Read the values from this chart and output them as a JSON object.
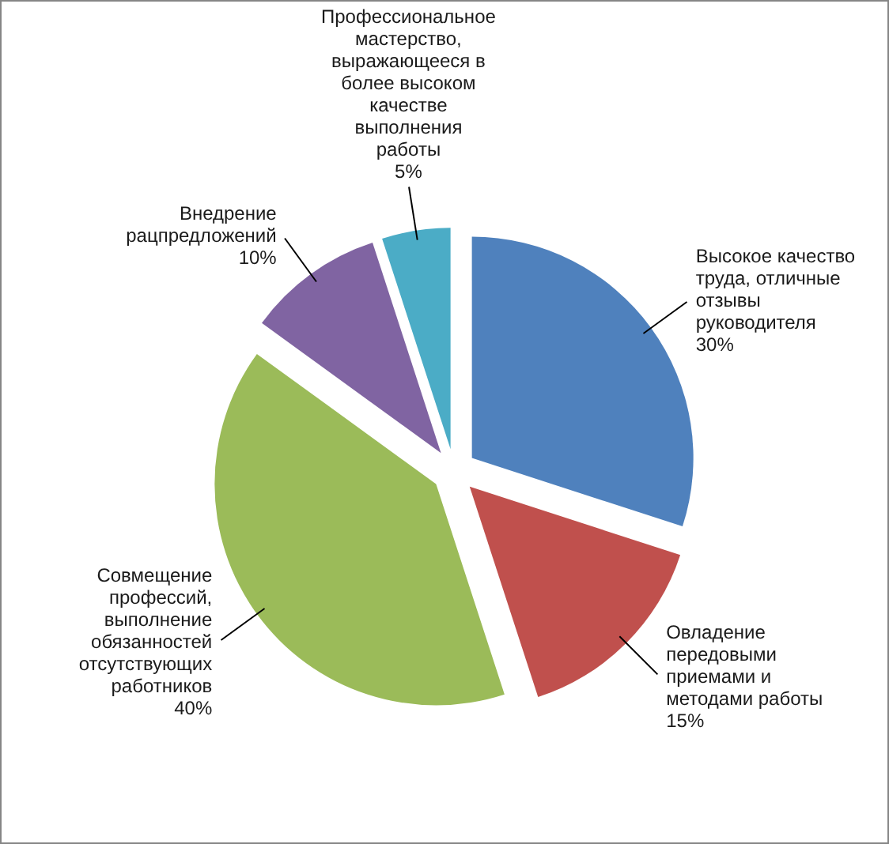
{
  "chart_data": {
    "type": "pie",
    "categories": [
      "Высокое качество труда, отличные отзывы руководителя",
      "Овладение передовыми приемами и методами работы",
      "Совмещение профессий, выполнение обязанностей отсутствующих работников",
      "Внедрение рацпредложений",
      "Профессиональное мастерство, выражающееся в более высоком качестве выполнения работы"
    ],
    "values": [
      30,
      15,
      40,
      10,
      5
    ],
    "colors": [
      "#4f81bd",
      "#c0504d",
      "#9bbb59",
      "#8064a2",
      "#4bacc6"
    ],
    "value_labels": [
      "30%",
      "15%",
      "40%",
      "10%",
      "5%"
    ]
  }
}
